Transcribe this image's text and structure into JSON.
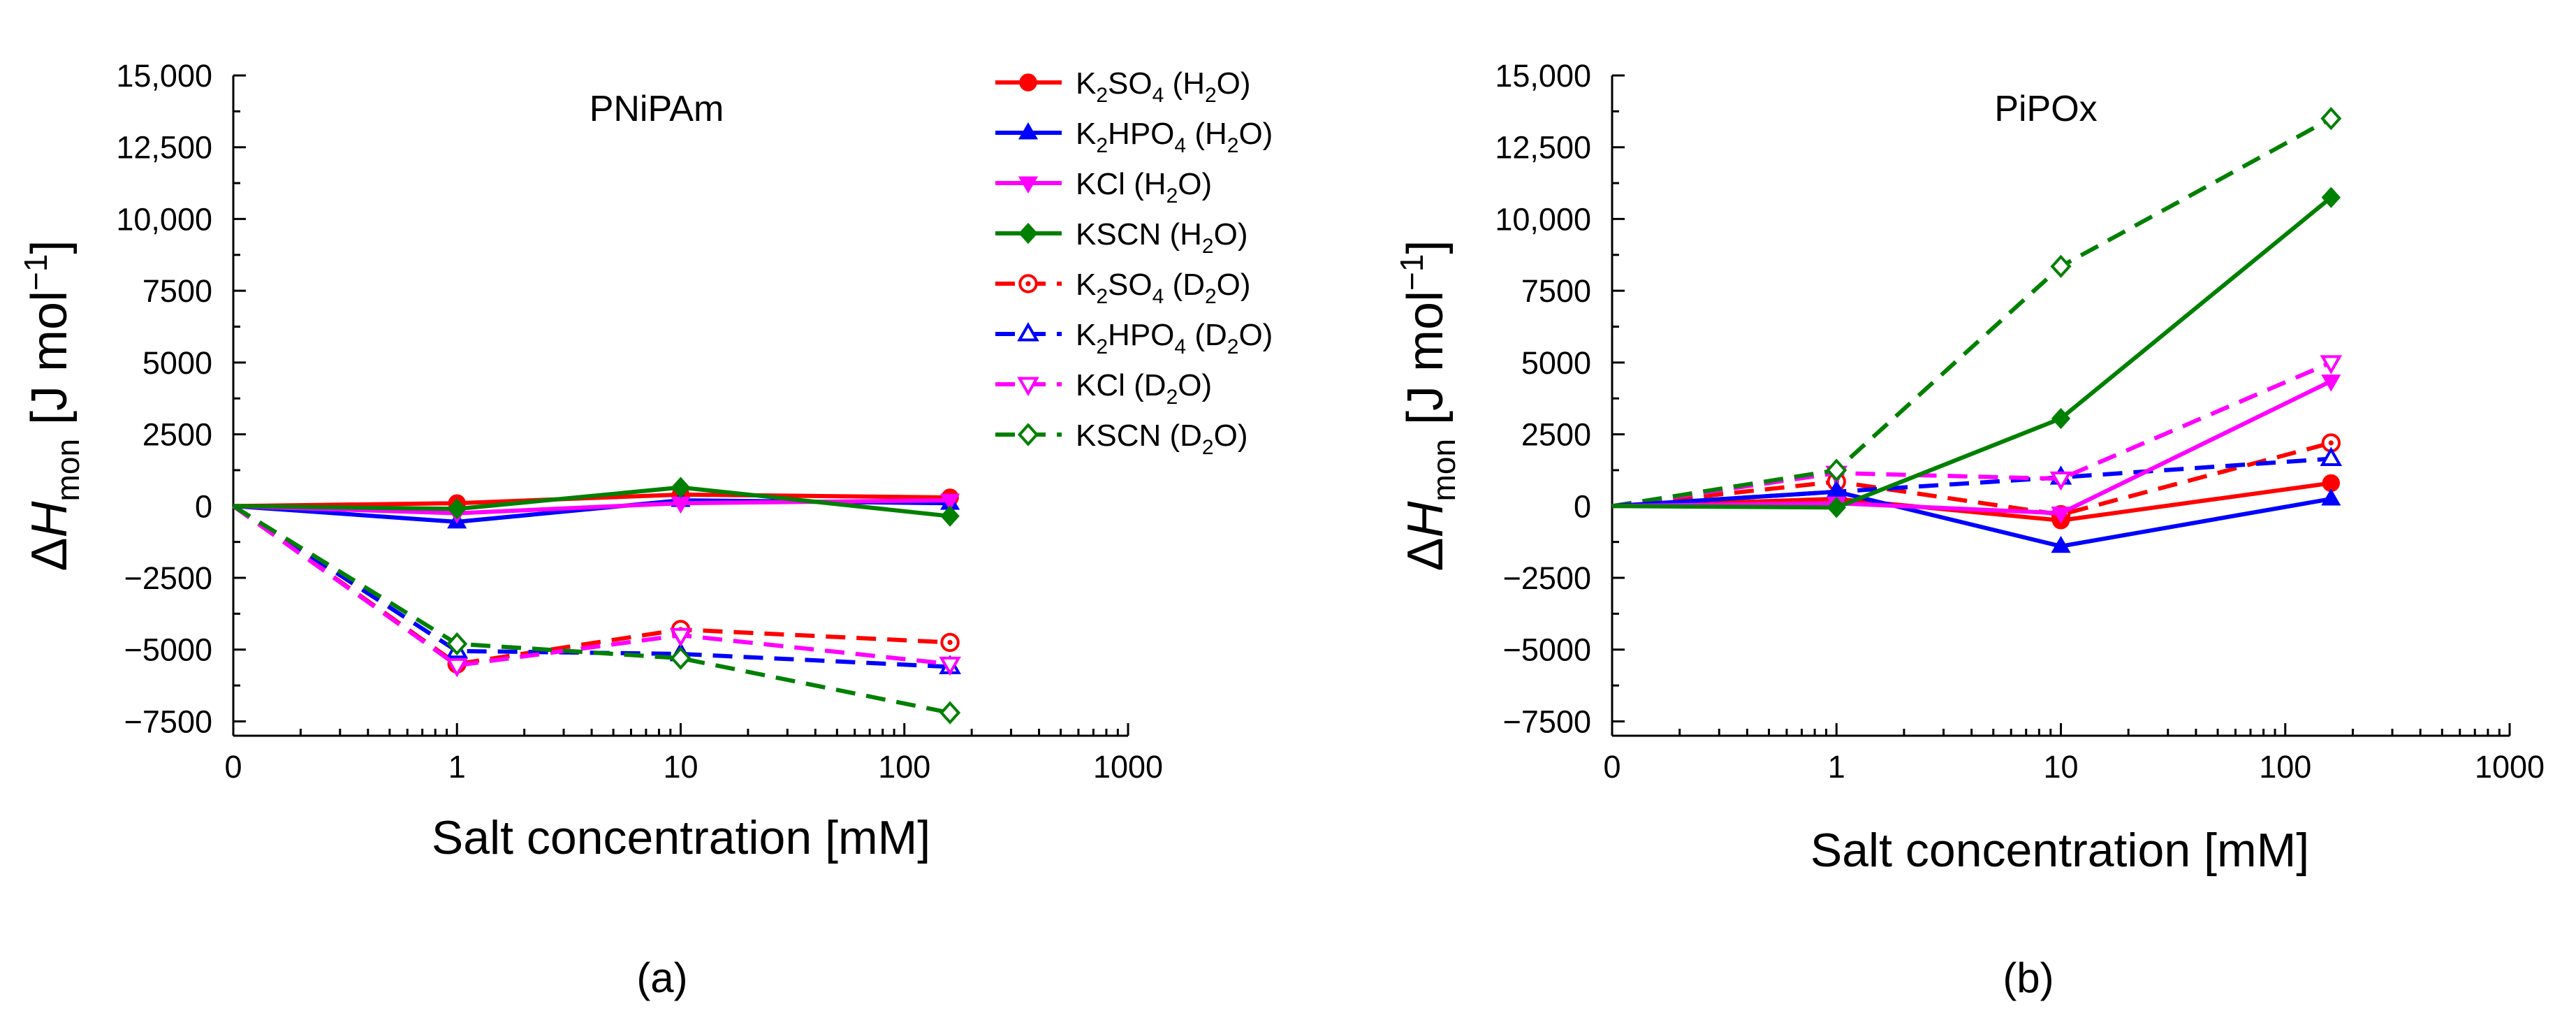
{
  "colors": {
    "K2SO4": "#ff0000",
    "K2HPO4": "#0000ff",
    "KCl": "#ff00ff",
    "KSCN": "#008000",
    "axis": "#000000"
  },
  "legend": [
    {
      "salt": "K2SO4",
      "base": "K",
      "sub1": "2",
      "mid": "SO",
      "sub2": "4",
      "solvent_pre": " (H",
      "solvent_sub": "2",
      "solvent_post": "O)",
      "marker": "circle",
      "filled": true,
      "dashed": false,
      "color_key": "K2SO4"
    },
    {
      "salt": "K2HPO4",
      "base": "K",
      "sub1": "2",
      "mid": "HPO",
      "sub2": "4",
      "solvent_pre": " (H",
      "solvent_sub": "2",
      "solvent_post": "O)",
      "marker": "triangle-up",
      "filled": true,
      "dashed": false,
      "color_key": "K2HPO4"
    },
    {
      "salt": "KCl",
      "base": "KCl",
      "sub1": "",
      "mid": "",
      "sub2": "",
      "solvent_pre": " (H",
      "solvent_sub": "2",
      "solvent_post": "O)",
      "marker": "triangle-down",
      "filled": true,
      "dashed": false,
      "color_key": "KCl"
    },
    {
      "salt": "KSCN",
      "base": "KSCN",
      "sub1": "",
      "mid": "",
      "sub2": "",
      "solvent_pre": " (H",
      "solvent_sub": "2",
      "solvent_post": "O)",
      "marker": "diamond",
      "filled": true,
      "dashed": false,
      "color_key": "KSCN"
    },
    {
      "salt": "K2SO4",
      "base": "K",
      "sub1": "2",
      "mid": "SO",
      "sub2": "4",
      "solvent_pre": " (D",
      "solvent_sub": "2",
      "solvent_post": "O)",
      "marker": "circle",
      "filled": false,
      "dashed": true,
      "color_key": "K2SO4"
    },
    {
      "salt": "K2HPO4",
      "base": "K",
      "sub1": "2",
      "mid": "HPO",
      "sub2": "4",
      "solvent_pre": " (D",
      "solvent_sub": "2",
      "solvent_post": "O)",
      "marker": "triangle-up",
      "filled": false,
      "dashed": true,
      "color_key": "K2HPO4"
    },
    {
      "salt": "KCl",
      "base": "KCl",
      "sub1": "",
      "mid": "",
      "sub2": "",
      "solvent_pre": " (D",
      "solvent_sub": "2",
      "solvent_post": "O)",
      "marker": "triangle-down",
      "filled": false,
      "dashed": true,
      "color_key": "KCl"
    },
    {
      "salt": "KSCN",
      "base": "KSCN",
      "sub1": "",
      "mid": "",
      "sub2": "",
      "solvent_pre": " (D",
      "solvent_sub": "2",
      "solvent_post": "O)",
      "marker": "diamond",
      "filled": false,
      "dashed": true,
      "color_key": "KSCN"
    }
  ],
  "chart_data": [
    {
      "type": "line",
      "panel_label": "(a)",
      "title": "PNiPAm",
      "xlabel": "Salt concentration [mM]",
      "ylabel_delta": "Δ",
      "ylabel_var": "H",
      "ylabel_sub": "mon",
      "ylabel_unit": " [J mol",
      "ylabel_sup": "−1",
      "ylabel_close": "]",
      "xscale": "log (0 plotted at origin)",
      "x_ticks": [
        "0",
        "1",
        "10",
        "100",
        "1000"
      ],
      "y_ticks": [
        "15,000",
        "12,500",
        "10,000",
        "7500",
        "5000",
        "2500",
        "0",
        "−2500",
        "−5000",
        "−7500"
      ],
      "ylim": [
        -8000,
        15000
      ],
      "y_tick_values": [
        15000,
        12500,
        10000,
        7500,
        5000,
        2500,
        0,
        -2500,
        -5000,
        -7500
      ],
      "x": [
        0,
        1,
        10,
        160
      ],
      "series": [
        {
          "name": "K2SO4 (H2O)",
          "values": [
            0,
            100,
            400,
            300
          ]
        },
        {
          "name": "K2HPO4 (H2O)",
          "values": [
            0,
            -550,
            200,
            100
          ]
        },
        {
          "name": "KCl (H2O)",
          "values": [
            0,
            -250,
            100,
            200
          ]
        },
        {
          "name": "KSCN (H2O)",
          "values": [
            0,
            -100,
            650,
            -350
          ]
        },
        {
          "name": "K2SO4 (D2O)",
          "values": [
            0,
            -5500,
            -4300,
            -4750
          ]
        },
        {
          "name": "K2HPO4 (D2O)",
          "values": [
            0,
            -5050,
            -5150,
            -5600
          ]
        },
        {
          "name": "KCl (D2O)",
          "values": [
            0,
            -5550,
            -4500,
            -5500
          ]
        },
        {
          "name": "KSCN (D2O)",
          "values": [
            0,
            -4800,
            -5300,
            -7200
          ]
        }
      ]
    },
    {
      "type": "line",
      "panel_label": "(b)",
      "title": "PiPOx",
      "xlabel": "Salt concentration [mM]",
      "ylabel_delta": "Δ",
      "ylabel_var": "H",
      "ylabel_sub": "mon",
      "ylabel_unit": " [J mol",
      "ylabel_sup": "−1",
      "ylabel_close": "]",
      "xscale": "log (0 plotted at origin)",
      "x_ticks": [
        "0",
        "1",
        "10",
        "100",
        "1000"
      ],
      "y_ticks": [
        "15,000",
        "12,500",
        "10,000",
        "7500",
        "5000",
        "2500",
        "0",
        "−2500",
        "−5000",
        "−7500"
      ],
      "ylim": [
        -8000,
        15000
      ],
      "y_tick_values": [
        15000,
        12500,
        10000,
        7500,
        5000,
        2500,
        0,
        -2500,
        -5000,
        -7500
      ],
      "x": [
        0,
        1,
        10,
        160
      ],
      "series": [
        {
          "name": "K2SO4 (H2O)",
          "values": [
            0,
            250,
            -500,
            800
          ]
        },
        {
          "name": "K2HPO4 (H2O)",
          "values": [
            0,
            500,
            -1400,
            250
          ]
        },
        {
          "name": "KCl (H2O)",
          "values": [
            0,
            100,
            -250,
            4350
          ]
        },
        {
          "name": "KSCN (H2O)",
          "values": [
            0,
            -50,
            3050,
            10750
          ]
        },
        {
          "name": "K2SO4 (D2O)",
          "values": [
            0,
            850,
            -300,
            2200
          ]
        },
        {
          "name": "K2HPO4 (D2O)",
          "values": [
            0,
            500,
            1000,
            1650
          ]
        },
        {
          "name": "KCl (D2O)",
          "values": [
            0,
            1150,
            950,
            5000
          ]
        },
        {
          "name": "KSCN (D2O)",
          "values": [
            0,
            1250,
            8350,
            13500
          ]
        }
      ]
    }
  ]
}
